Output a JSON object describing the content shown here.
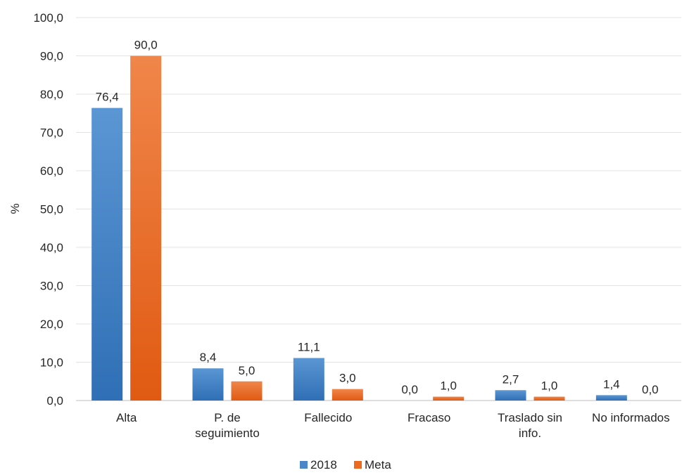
{
  "chart_data": {
    "type": "bar",
    "ylabel": "%",
    "ylim": [
      0,
      100
    ],
    "yticks": [
      "0,0",
      "10,0",
      "20,0",
      "30,0",
      "40,0",
      "50,0",
      "60,0",
      "70,0",
      "80,0",
      "90,0",
      "100,0"
    ],
    "categories": [
      [
        "Alta"
      ],
      [
        "P. de",
        "seguimiento"
      ],
      [
        "Fallecido"
      ],
      [
        "Fracaso"
      ],
      [
        "Traslado sin",
        "info."
      ],
      [
        "No informados"
      ]
    ],
    "series": [
      {
        "name": "2018",
        "values": [
          76.4,
          8.4,
          11.1,
          0.0,
          2.7,
          1.4
        ],
        "labels": [
          "76,4",
          "8,4",
          "11,1",
          "0,0",
          "2,7",
          "1,4"
        ],
        "color": "#4a86c8"
      },
      {
        "name": "Meta",
        "values": [
          90.0,
          5.0,
          3.0,
          1.0,
          1.0,
          0.0
        ],
        "labels": [
          "90,0",
          "5,0",
          "3,0",
          "1,0",
          "1,0",
          "0,0"
        ],
        "color": "#ec6a1f"
      }
    ],
    "grid": true,
    "legend_position": "bottom"
  }
}
